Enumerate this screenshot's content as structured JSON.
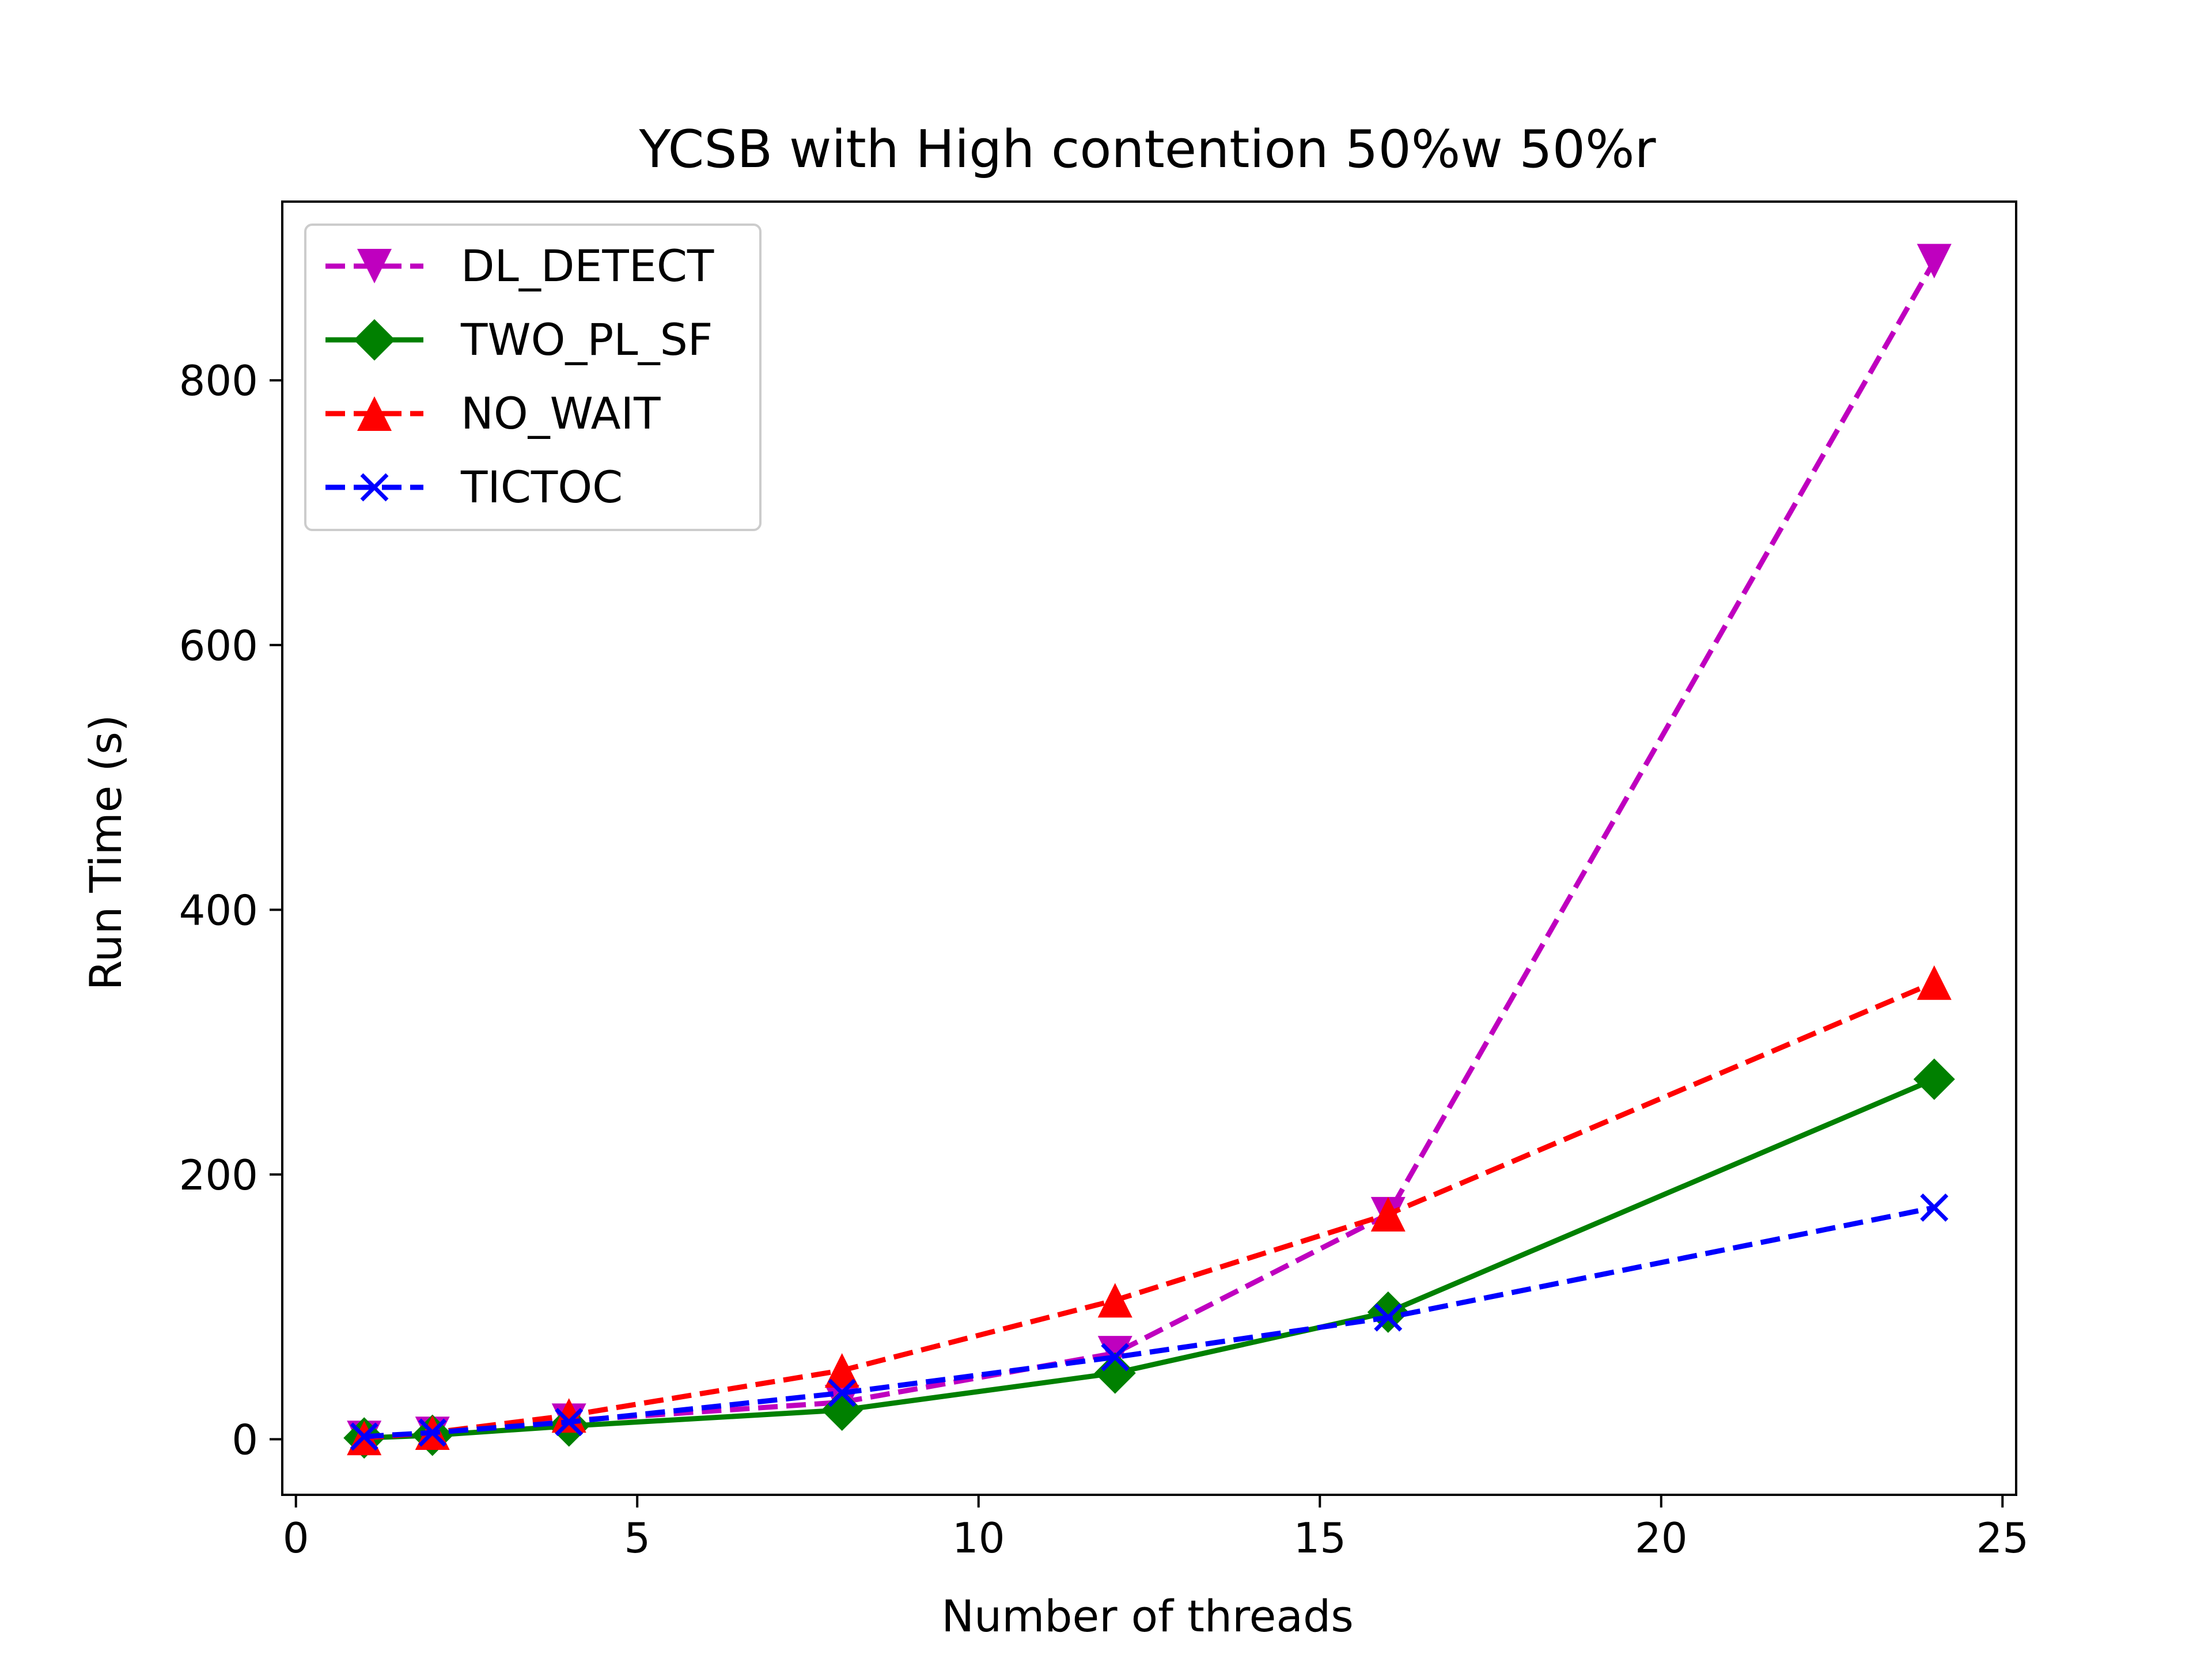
{
  "chart_data": {
    "type": "line",
    "title": "YCSB with High contention 50%w 50%r",
    "xlabel": "Number of threads",
    "ylabel": "Run Time (s)",
    "xlim": [
      -0.2,
      25.2
    ],
    "ylim": [
      -42,
      935
    ],
    "xticks": [
      0,
      5,
      10,
      15,
      20,
      25
    ],
    "yticks": [
      0,
      200,
      400,
      600,
      800
    ],
    "grid": false,
    "legend_position": "upper-left",
    "x": [
      1,
      2,
      4,
      8,
      12,
      16,
      24
    ],
    "series": [
      {
        "name": "DL_DETECT",
        "color": "#bf00bf",
        "linestyle": "dashed",
        "marker": "triangle-down",
        "values": [
          1,
          4,
          14,
          28,
          65,
          170,
          890
        ]
      },
      {
        "name": "TWO_PL_SF",
        "color": "#008000",
        "linestyle": "solid",
        "marker": "diamond",
        "values": [
          1,
          3,
          10,
          22,
          50,
          96,
          272
        ]
      },
      {
        "name": "NO_WAIT",
        "color": "#ff0000",
        "linestyle": "dashed",
        "marker": "triangle-up",
        "values": [
          1,
          5,
          18,
          52,
          105,
          170,
          345
        ]
      },
      {
        "name": "TICTOC",
        "color": "#0000ff",
        "linestyle": "dashed",
        "marker": "x",
        "values": [
          2,
          5,
          13,
          35,
          62,
          92,
          175
        ]
      }
    ]
  }
}
